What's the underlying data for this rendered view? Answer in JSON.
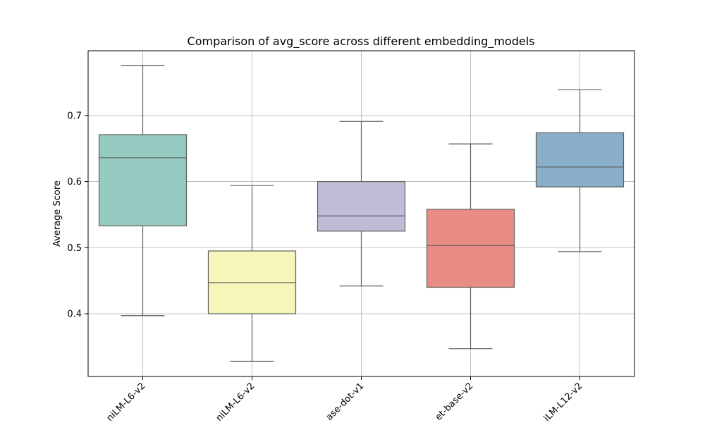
{
  "chart_data": {
    "type": "box",
    "title": "Comparison of avg_score across different embedding_models",
    "xlabel": "",
    "ylabel": "Average Score",
    "ylim": [
      0.305,
      0.798
    ],
    "yticks": [
      0.4,
      0.5,
      0.6,
      0.7
    ],
    "ytick_labels": [
      "0.4",
      "0.5",
      "0.6",
      "0.7"
    ],
    "grid": true,
    "categories": [
      "niLM-L6-v2",
      "niLM-L6-v2",
      "ase-dot-v1",
      "et-base-v2",
      "iLM-L12-v2"
    ],
    "boxes": [
      {
        "whisker_low": 0.397,
        "q1": 0.533,
        "median": 0.636,
        "q3": 0.671,
        "whisker_high": 0.776,
        "color": "#96cbc1"
      },
      {
        "whisker_low": 0.328,
        "q1": 0.4,
        "median": 0.447,
        "q3": 0.495,
        "whisker_high": 0.594,
        "color": "#f6f6ba"
      },
      {
        "whisker_low": 0.442,
        "q1": 0.525,
        "median": 0.548,
        "q3": 0.6,
        "whisker_high": 0.691,
        "color": "#bfbdd6"
      },
      {
        "whisker_low": 0.347,
        "q1": 0.44,
        "median": 0.503,
        "q3": 0.558,
        "whisker_high": 0.657,
        "color": "#e98c83"
      },
      {
        "whisker_low": 0.494,
        "q1": 0.592,
        "median": 0.622,
        "q3": 0.674,
        "whisker_high": 0.739,
        "color": "#89afca"
      }
    ]
  }
}
